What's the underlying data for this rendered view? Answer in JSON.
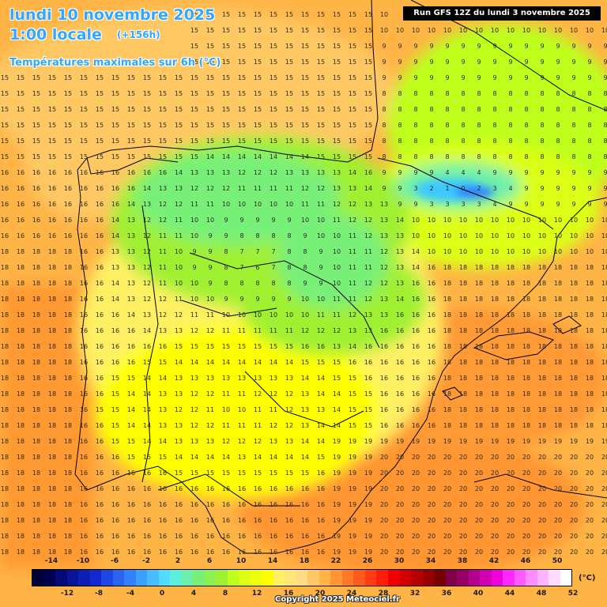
{
  "header": {
    "date": "lundi 10 novembre 2025",
    "time": "1:00 locale",
    "lead": "(+156h)",
    "parameter": "Températures maximales sur 6h (°C)",
    "run": "Run GFS 12Z du lundi 3 novembre 2025"
  },
  "legend": {
    "unit": "(°C)",
    "labels_top": [
      "-14",
      "-10",
      "-6",
      "-2",
      "2",
      "6",
      "10",
      "14",
      "18",
      "22",
      "26",
      "30",
      "34",
      "38",
      "42",
      "46",
      "50"
    ],
    "labels_bottom": [
      "-12",
      "-8",
      "-4",
      "0",
      "4",
      "8",
      "12",
      "16",
      "20",
      "24",
      "28",
      "32",
      "36",
      "40",
      "44",
      "48",
      "52"
    ],
    "colors": [
      "#000038",
      "#00004e",
      "#050a78",
      "#0a1496",
      "#0f1eb4",
      "#1428d2",
      "#1e46e6",
      "#2864f0",
      "#3282ff",
      "#3ca0ff",
      "#46beff",
      "#50dcff",
      "#5af0dc",
      "#6ef0aa",
      "#78f078",
      "#8cf050",
      "#a0f032",
      "#beff1e",
      "#dcff14",
      "#f0ff0a",
      "#ffff00",
      "#fff064",
      "#ffe678",
      "#ffdc82",
      "#ffc864",
      "#ffb446",
      "#ff9632",
      "#ff7828",
      "#ff5a1e",
      "#ff3c14",
      "#ff1e0a",
      "#f00000",
      "#d20000",
      "#b40000",
      "#960000",
      "#780000",
      "#80004a",
      "#960064",
      "#b4008c",
      "#d200b4",
      "#f000dc",
      "#ff28ff",
      "#ff5aff",
      "#ff8cff",
      "#ffb4ff",
      "#ffdcff",
      "#ffffff"
    ]
  },
  "map": {
    "region": "Péninsule Ibérique",
    "field": "température maximale 6h",
    "min_value": 0,
    "max_value": 21,
    "cold_spot": "Pyrénées",
    "warm_spot": "Sud-est de l'Espagne / Méditerranée"
  },
  "footer": {
    "copyright": "Copyright 2025 Meteociel.fr"
  }
}
